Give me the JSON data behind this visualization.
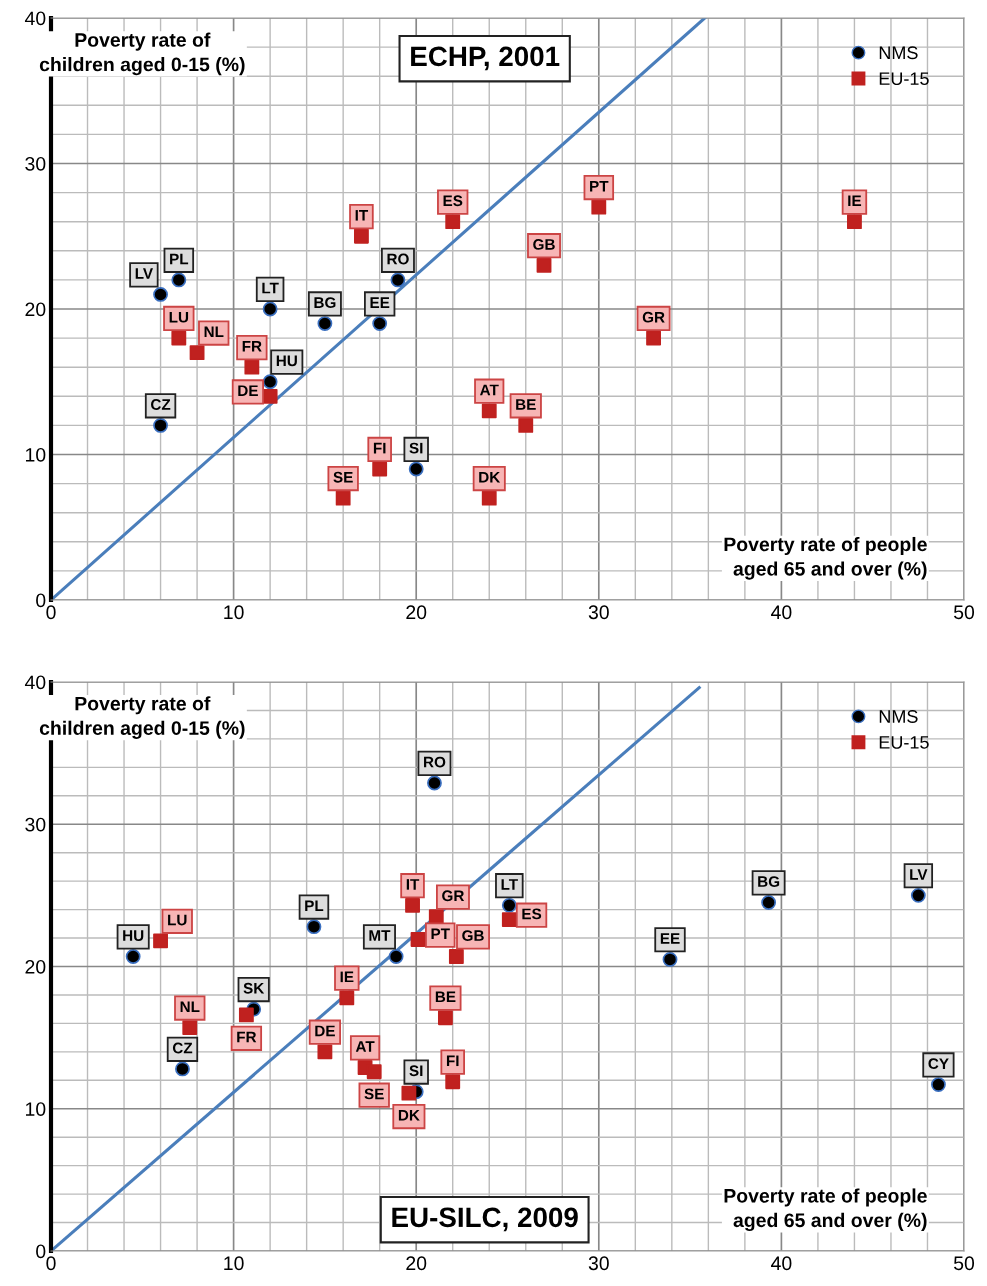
{
  "chart_data": [
    {
      "type": "scatter",
      "title": "ECHP, 2001",
      "xlabel": "Poverty rate of people aged 65 and over (%)",
      "ylabel": "Poverty rate of children aged 0-15 (%)",
      "xlim": [
        0,
        50
      ],
      "ylim": [
        0,
        40
      ],
      "xticks": [
        0,
        10,
        20,
        30,
        40,
        50
      ],
      "yticks": [
        0,
        10,
        20,
        30,
        40
      ],
      "grid": true,
      "legend": "top right",
      "series": [
        {
          "name": "NMS",
          "color": "#000000",
          "marker": "circle",
          "x": [
            6,
            7,
            12,
            15,
            18,
            19,
            12,
            6,
            20
          ],
          "values": [
            21,
            22,
            20,
            19,
            19,
            22,
            15,
            12,
            9
          ]
        },
        {
          "name": "EU-15",
          "color": "#c0211f",
          "marker": "square",
          "x": [
            17,
            22,
            30,
            44,
            27,
            33,
            7,
            8,
            11,
            12,
            24,
            26,
            18,
            16,
            24
          ],
          "values": [
            25,
            26,
            27,
            26,
            23,
            18,
            18,
            17,
            16,
            14,
            13,
            12,
            9,
            7,
            7
          ]
        },
        {
          "type": "line",
          "color": "#4a7ebb",
          "x": [
            0,
            35.8
          ],
          "values": [
            0,
            40
          ]
        }
      ],
      "annotations": [
        {
          "text": "LV",
          "x": 6,
          "y": 21
        },
        {
          "text": "PL",
          "x": 7,
          "y": 22
        },
        {
          "text": "LT",
          "x": 12,
          "y": 20
        },
        {
          "text": "BG",
          "x": 15,
          "y": 19
        },
        {
          "text": "EE",
          "x": 18,
          "y": 19
        },
        {
          "text": "RO",
          "x": 19,
          "y": 22
        },
        {
          "text": "HU",
          "x": 12,
          "y": 15
        },
        {
          "text": "CZ",
          "x": 6,
          "y": 12
        },
        {
          "text": "SI",
          "x": 20,
          "y": 9
        },
        {
          "text": "IT",
          "x": 17,
          "y": 25
        },
        {
          "text": "ES",
          "x": 22,
          "y": 26
        },
        {
          "text": "PT",
          "x": 30,
          "y": 27
        },
        {
          "text": "IE",
          "x": 44,
          "y": 26
        },
        {
          "text": "GB",
          "x": 27,
          "y": 23
        },
        {
          "text": "GR",
          "x": 33,
          "y": 18
        },
        {
          "text": "LU",
          "x": 7,
          "y": 18
        },
        {
          "text": "NL",
          "x": 8,
          "y": 17
        },
        {
          "text": "FR",
          "x": 11,
          "y": 16
        },
        {
          "text": "DE",
          "x": 12,
          "y": 14
        },
        {
          "text": "AT",
          "x": 24,
          "y": 13
        },
        {
          "text": "BE",
          "x": 26,
          "y": 12
        },
        {
          "text": "FI",
          "x": 18,
          "y": 9
        },
        {
          "text": "SE",
          "x": 16,
          "y": 7
        },
        {
          "text": "DK",
          "x": 24,
          "y": 7
        }
      ]
    },
    {
      "type": "scatter",
      "title": "EU-SILC, 2009",
      "xlabel": "Poverty rate of people aged 65 and over (%)",
      "ylabel": "Poverty rate of children aged 0-15 (%)",
      "xlim": [
        0,
        50
      ],
      "ylim": [
        0,
        40
      ],
      "xticks": [
        0,
        10,
        20,
        30,
        40,
        50
      ],
      "yticks": [
        0,
        10,
        20,
        30,
        40
      ],
      "grid": true,
      "legend": "top right",
      "series": [
        {
          "name": "NMS",
          "color": "#000000",
          "marker": "circle",
          "x": [
            21.0,
            14.4,
            4.5,
            7.2,
            18.9,
            25.1,
            33.9,
            39.3,
            47.5,
            48.6,
            20.0,
            11.1
          ],
          "values": [
            32.9,
            22.8,
            20.7,
            12.8,
            20.7,
            24.3,
            20.5,
            24.5,
            25.0,
            11.7,
            11.2,
            17.0
          ]
        },
        {
          "name": "EU-15",
          "color": "#c0211f",
          "marker": "square",
          "x": [
            6.0,
            7.6,
            10.7,
            15.0,
            16.2,
            17.2,
            17.7,
            19.6,
            19.8,
            20.1,
            21.1,
            22.2,
            25.1,
            21.6,
            22.0
          ],
          "values": [
            21.8,
            15.7,
            16.6,
            14.0,
            17.8,
            12.9,
            12.6,
            11.1,
            24.3,
            21.9,
            23.5,
            20.7,
            23.3,
            16.4,
            11.9
          ]
        },
        {
          "type": "line",
          "color": "#4a7ebb",
          "x": [
            0,
            35.5
          ],
          "values": [
            0,
            39.6
          ]
        }
      ],
      "annotations": [
        {
          "text": "RO",
          "x": 21.0,
          "y": 32.9
        },
        {
          "text": "PL",
          "x": 14.4,
          "y": 22.8
        },
        {
          "text": "HU",
          "x": 4.5,
          "y": 20.7
        },
        {
          "text": "CZ",
          "x": 7.2,
          "y": 12.8
        },
        {
          "text": "MT",
          "x": 18.9,
          "y": 20.7
        },
        {
          "text": "LT",
          "x": 25.1,
          "y": 24.3
        },
        {
          "text": "EE",
          "x": 33.9,
          "y": 20.5
        },
        {
          "text": "BG",
          "x": 39.3,
          "y": 24.5
        },
        {
          "text": "LV",
          "x": 47.5,
          "y": 25.0
        },
        {
          "text": "CY",
          "x": 48.6,
          "y": 11.7
        },
        {
          "text": "SI",
          "x": 20.0,
          "y": 11.2
        },
        {
          "text": "SK",
          "x": 11.1,
          "y": 17.0
        },
        {
          "text": "LU",
          "x": 6.0,
          "y": 21.8
        },
        {
          "text": "NL",
          "x": 7.6,
          "y": 15.7
        },
        {
          "text": "FR",
          "x": 10.7,
          "y": 16.6
        },
        {
          "text": "DE",
          "x": 15.0,
          "y": 14.0
        },
        {
          "text": "IE",
          "x": 16.2,
          "y": 17.8
        },
        {
          "text": "AT",
          "x": 17.2,
          "y": 12.9
        },
        {
          "text": "SE",
          "x": 17.7,
          "y": 12.6
        },
        {
          "text": "DK",
          "x": 19.6,
          "y": 11.1
        },
        {
          "text": "IT",
          "x": 19.8,
          "y": 24.3
        },
        {
          "text": "PT",
          "x": 20.1,
          "y": 21.9
        },
        {
          "text": "GR",
          "x": 21.1,
          "y": 23.5
        },
        {
          "text": "GB",
          "x": 22.2,
          "y": 20.7
        },
        {
          "text": "ES",
          "x": 25.1,
          "y": 23.3
        },
        {
          "text": "BE",
          "x": 21.6,
          "y": 16.4
        },
        {
          "text": "FI",
          "x": 22.0,
          "y": 11.9
        }
      ]
    }
  ]
}
